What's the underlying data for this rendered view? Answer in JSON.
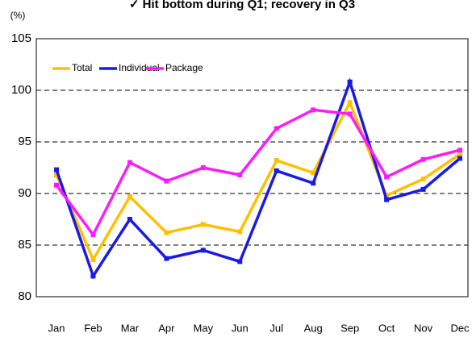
{
  "chart_data": {
    "type": "line",
    "title": "✓ Hit bottom during Q1; recovery in Q3",
    "y_label": "(%)",
    "categories": [
      "Jan",
      "Feb",
      "Mar",
      "Apr",
      "May",
      "Jun",
      "Jul",
      "Aug",
      "Sep",
      "Oct",
      "Nov",
      "Dec"
    ],
    "series": [
      {
        "name": "Total",
        "color": "#ffc000",
        "values": [
          91.8,
          83.6,
          89.7,
          86.2,
          87.0,
          86.3,
          93.2,
          92.0,
          98.8,
          89.8,
          91.4,
          93.8
        ]
      },
      {
        "name": "Individual",
        "color": "#1a1ae6",
        "values": [
          92.3,
          82.0,
          87.5,
          83.7,
          84.5,
          83.4,
          92.2,
          91.0,
          100.8,
          89.4,
          90.4,
          93.4
        ]
      },
      {
        "name": "Package",
        "color": "#ff1aff",
        "values": [
          90.8,
          86.0,
          93.0,
          91.2,
          92.5,
          91.8,
          96.3,
          98.1,
          97.7,
          91.6,
          93.3,
          94.2
        ]
      }
    ],
    "ylim": [
      80,
      105
    ],
    "yticks": [
      80,
      85,
      90,
      95,
      100,
      105
    ],
    "grid": true
  }
}
